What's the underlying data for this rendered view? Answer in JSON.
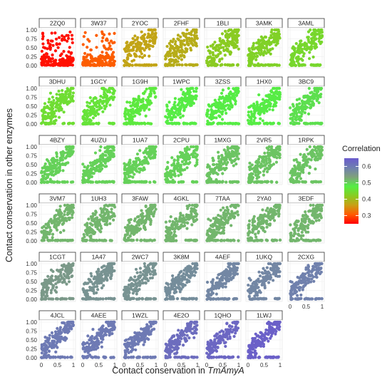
{
  "chart_data": {
    "type": "scatter",
    "layout": "faceted small multiples (7 columns x 6 rows)",
    "xlabel_prefix": "Contact conservation in ",
    "xlabel_italic": "TmAmyA",
    "ylabel": "Contact conservation in other enzymes",
    "x_ticks": [
      "0",
      "0.5",
      "1"
    ],
    "y_ticks": [
      "0.00",
      "0.25",
      "0.50",
      "0.75",
      "1.00"
    ],
    "xlim": [
      0,
      1
    ],
    "ylim": [
      0,
      1
    ],
    "grid": true,
    "legend": {
      "title": "Correlation",
      "placement": "right",
      "ticks": [
        "0.6",
        "0.5",
        "0.4",
        "0.3"
      ],
      "tick_values": [
        0.6,
        0.5,
        0.4,
        0.3
      ],
      "range": [
        0.25,
        0.65
      ],
      "colors": [
        "#6a5acd",
        "#6f7fb0",
        "#7fa17c",
        "#55ee44",
        "#88cc22",
        "#c8a015",
        "#ff5a00",
        "#ff0000"
      ]
    },
    "panels": [
      {
        "name": "2ZQ0",
        "correlation": 0.26
      },
      {
        "name": "3W37",
        "correlation": 0.31
      },
      {
        "name": "2YOC",
        "correlation": 0.37
      },
      {
        "name": "2FHF",
        "correlation": 0.38
      },
      {
        "name": "1BLI",
        "correlation": 0.42
      },
      {
        "name": "3AMK",
        "correlation": 0.43
      },
      {
        "name": "3AML",
        "correlation": 0.44
      },
      {
        "name": "3DHU",
        "correlation": 0.45
      },
      {
        "name": "1GCY",
        "correlation": 0.46
      },
      {
        "name": "1G9H",
        "correlation": 0.47
      },
      {
        "name": "1WPC",
        "correlation": 0.48
      },
      {
        "name": "3ZSS",
        "correlation": 0.48
      },
      {
        "name": "1HX0",
        "correlation": 0.48
      },
      {
        "name": "3BC9",
        "correlation": 0.49
      },
      {
        "name": "4BZY",
        "correlation": 0.5
      },
      {
        "name": "4UZU",
        "correlation": 0.5
      },
      {
        "name": "1UA7",
        "correlation": 0.5
      },
      {
        "name": "2CPU",
        "correlation": 0.5
      },
      {
        "name": "1MXG",
        "correlation": 0.51
      },
      {
        "name": "2VR5",
        "correlation": 0.51
      },
      {
        "name": "1RPK",
        "correlation": 0.51
      },
      {
        "name": "3VM7",
        "correlation": 0.52
      },
      {
        "name": "1UH3",
        "correlation": 0.52
      },
      {
        "name": "3FAW",
        "correlation": 0.52
      },
      {
        "name": "4GKL",
        "correlation": 0.52
      },
      {
        "name": "7TAA",
        "correlation": 0.52
      },
      {
        "name": "2YA0",
        "correlation": 0.52
      },
      {
        "name": "3EDF",
        "correlation": 0.52
      },
      {
        "name": "1CGT",
        "correlation": 0.55
      },
      {
        "name": "1A47",
        "correlation": 0.56
      },
      {
        "name": "2WC7",
        "correlation": 0.56
      },
      {
        "name": "3K8M",
        "correlation": 0.57
      },
      {
        "name": "4AEF",
        "correlation": 0.58
      },
      {
        "name": "1UKQ",
        "correlation": 0.58
      },
      {
        "name": "2CXG",
        "correlation": 0.59
      },
      {
        "name": "4JCL",
        "correlation": 0.6
      },
      {
        "name": "4AEE",
        "correlation": 0.6
      },
      {
        "name": "1WZL",
        "correlation": 0.6
      },
      {
        "name": "4E2O",
        "correlation": 0.62
      },
      {
        "name": "1QHO",
        "correlation": 0.63
      },
      {
        "name": "1LWJ",
        "correlation": 0.64
      }
    ]
  }
}
